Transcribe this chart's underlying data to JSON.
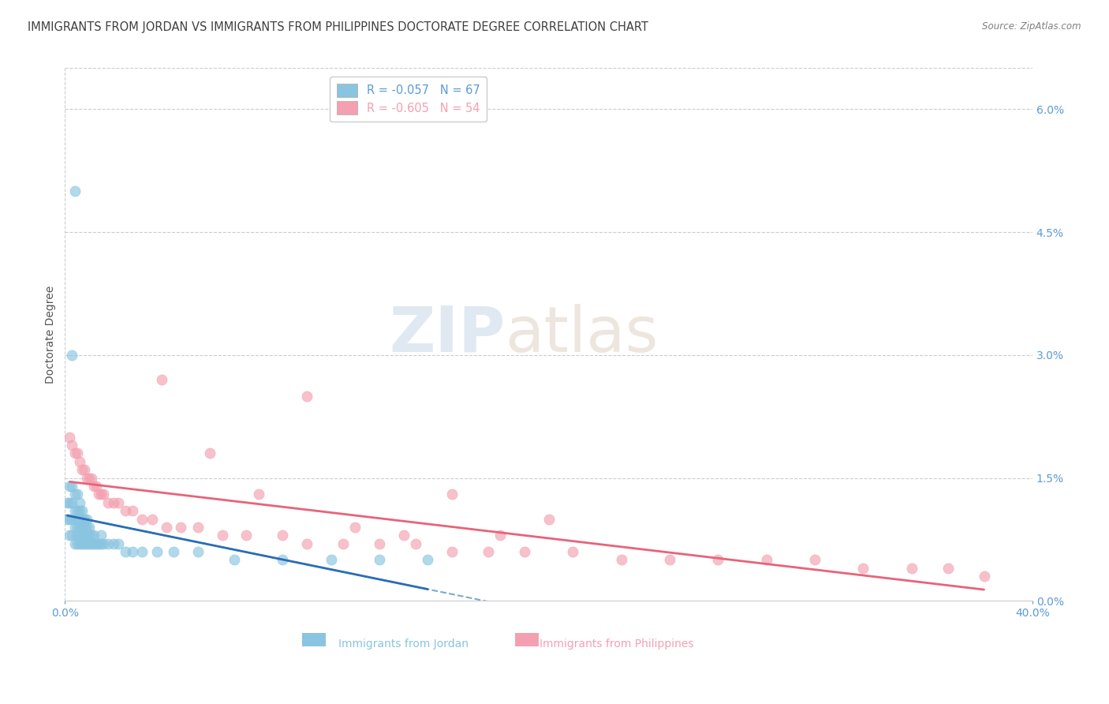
{
  "title": "IMMIGRANTS FROM JORDAN VS IMMIGRANTS FROM PHILIPPINES DOCTORATE DEGREE CORRELATION CHART",
  "source": "Source: ZipAtlas.com",
  "ylabel": "Doctorate Degree",
  "xlim": [
    0.0,
    0.4
  ],
  "ylim": [
    0.0,
    0.065
  ],
  "x_ticks": [
    0.0,
    0.4
  ],
  "x_tick_labels": [
    "0.0%",
    "40.0%"
  ],
  "y_ticks_right": [
    0.0,
    0.015,
    0.03,
    0.045,
    0.06
  ],
  "y_tick_labels_right": [
    "0.0%",
    "1.5%",
    "3.0%",
    "4.5%",
    "6.0%"
  ],
  "jordan_color": "#89c4e1",
  "philippines_color": "#f4a0b0",
  "legend_label_jordan": "R = -0.057   N = 67",
  "legend_label_philippines": "R = -0.605   N = 54",
  "watermark_zip": "ZIP",
  "watermark_atlas": "atlas",
  "jordan_x": [
    0.001,
    0.001,
    0.002,
    0.002,
    0.002,
    0.002,
    0.003,
    0.003,
    0.003,
    0.003,
    0.004,
    0.004,
    0.004,
    0.004,
    0.004,
    0.005,
    0.005,
    0.005,
    0.005,
    0.005,
    0.005,
    0.006,
    0.006,
    0.006,
    0.006,
    0.006,
    0.006,
    0.007,
    0.007,
    0.007,
    0.007,
    0.007,
    0.008,
    0.008,
    0.008,
    0.008,
    0.009,
    0.009,
    0.009,
    0.009,
    0.01,
    0.01,
    0.01,
    0.011,
    0.011,
    0.012,
    0.012,
    0.013,
    0.014,
    0.015,
    0.015,
    0.016,
    0.018,
    0.02,
    0.022,
    0.025,
    0.028,
    0.032,
    0.038,
    0.045,
    0.055,
    0.07,
    0.09,
    0.11,
    0.13,
    0.15,
    0.003
  ],
  "jordan_y": [
    0.01,
    0.012,
    0.008,
    0.01,
    0.012,
    0.014,
    0.008,
    0.01,
    0.012,
    0.014,
    0.007,
    0.009,
    0.011,
    0.013,
    0.05,
    0.007,
    0.008,
    0.009,
    0.01,
    0.011,
    0.013,
    0.007,
    0.008,
    0.009,
    0.01,
    0.011,
    0.012,
    0.007,
    0.008,
    0.009,
    0.01,
    0.011,
    0.007,
    0.008,
    0.009,
    0.01,
    0.007,
    0.008,
    0.009,
    0.01,
    0.007,
    0.008,
    0.009,
    0.007,
    0.008,
    0.007,
    0.008,
    0.007,
    0.007,
    0.007,
    0.008,
    0.007,
    0.007,
    0.007,
    0.007,
    0.006,
    0.006,
    0.006,
    0.006,
    0.006,
    0.006,
    0.005,
    0.005,
    0.005,
    0.005,
    0.005,
    0.03
  ],
  "philippines_x": [
    0.002,
    0.003,
    0.004,
    0.005,
    0.006,
    0.007,
    0.008,
    0.009,
    0.01,
    0.011,
    0.012,
    0.013,
    0.014,
    0.015,
    0.016,
    0.018,
    0.02,
    0.022,
    0.025,
    0.028,
    0.032,
    0.036,
    0.042,
    0.048,
    0.055,
    0.065,
    0.075,
    0.09,
    0.1,
    0.115,
    0.13,
    0.145,
    0.16,
    0.175,
    0.19,
    0.21,
    0.23,
    0.25,
    0.27,
    0.29,
    0.31,
    0.33,
    0.35,
    0.365,
    0.38,
    0.04,
    0.06,
    0.08,
    0.1,
    0.12,
    0.14,
    0.16,
    0.18,
    0.2
  ],
  "philippines_y": [
    0.02,
    0.019,
    0.018,
    0.018,
    0.017,
    0.016,
    0.016,
    0.015,
    0.015,
    0.015,
    0.014,
    0.014,
    0.013,
    0.013,
    0.013,
    0.012,
    0.012,
    0.012,
    0.011,
    0.011,
    0.01,
    0.01,
    0.009,
    0.009,
    0.009,
    0.008,
    0.008,
    0.008,
    0.007,
    0.007,
    0.007,
    0.007,
    0.006,
    0.006,
    0.006,
    0.006,
    0.005,
    0.005,
    0.005,
    0.005,
    0.005,
    0.004,
    0.004,
    0.004,
    0.003,
    0.027,
    0.018,
    0.013,
    0.025,
    0.009,
    0.008,
    0.013,
    0.008,
    0.01
  ],
  "grid_color": "#cccccc",
  "axis_label_color": "#5b9bd5",
  "title_color": "#404040",
  "source_color": "#808080",
  "title_fontsize": 10.5,
  "label_fontsize": 10,
  "tick_fontsize": 10
}
